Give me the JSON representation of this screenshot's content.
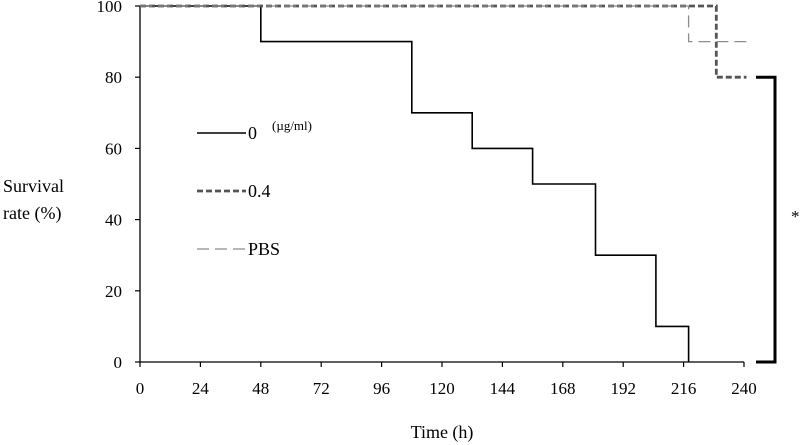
{
  "chart_data": {
    "type": "line",
    "title": "",
    "xlabel": "Time (h)",
    "ylabel_lines": [
      "Survival",
      "rate (%)"
    ],
    "xlim": [
      0,
      240
    ],
    "ylim": [
      0,
      100
    ],
    "x_ticks": [
      0,
      24,
      48,
      72,
      96,
      120,
      144,
      168,
      192,
      216,
      240
    ],
    "y_ticks": [
      0,
      20,
      40,
      60,
      80,
      100
    ],
    "step": true,
    "grid": false,
    "legend_placement": "center-left",
    "legend_unit": "(µg/ml)",
    "series": [
      {
        "name": "0",
        "color": "#000000",
        "style": "solid",
        "x": [
          0,
          48,
          48,
          108,
          108,
          132,
          132,
          156,
          156,
          181,
          181,
          205,
          205,
          218,
          218
        ],
        "y": [
          100,
          100,
          90,
          90,
          70,
          70,
          60,
          60,
          50,
          50,
          30,
          30,
          10,
          10,
          0
        ]
      },
      {
        "name": "0.4",
        "color": "#555555",
        "style": "dashed-bold",
        "x": [
          0,
          229,
          229,
          241
        ],
        "y": [
          100,
          100,
          80,
          80
        ]
      },
      {
        "name": "PBS",
        "color": "#8c8c8c",
        "style": "long-dash",
        "x": [
          0,
          218,
          218,
          242
        ],
        "y": [
          100,
          100,
          90,
          90
        ]
      }
    ],
    "annotations": [
      {
        "text": "*",
        "meaning": "significance bracket spanning 0 to 80"
      }
    ]
  }
}
